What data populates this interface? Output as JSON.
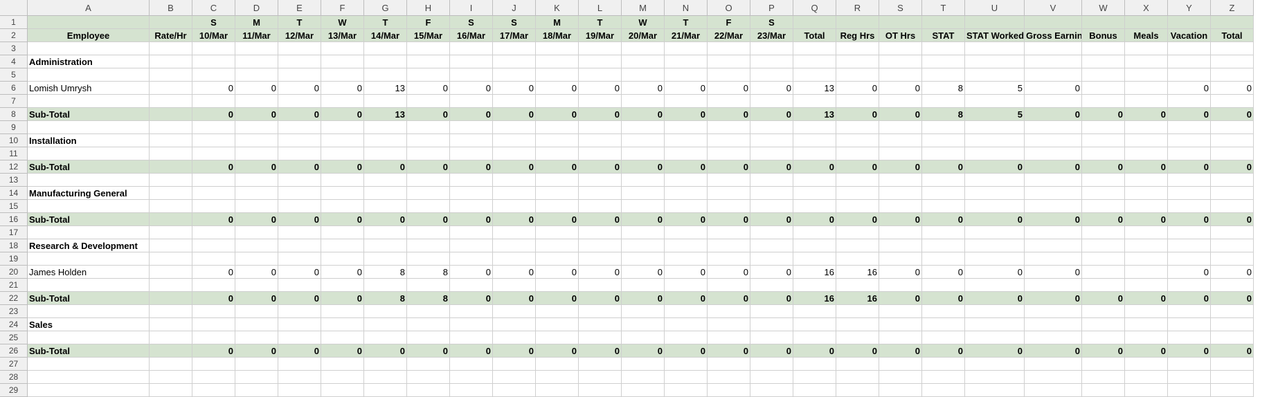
{
  "columns": [
    "A",
    "B",
    "C",
    "D",
    "E",
    "F",
    "G",
    "H",
    "I",
    "J",
    "K",
    "L",
    "M",
    "N",
    "O",
    "P",
    "Q",
    "R",
    "S",
    "T",
    "U",
    "V",
    "W",
    "X",
    "Y",
    "Z"
  ],
  "row_count": 29,
  "header_row1": [
    "",
    "",
    "S",
    "M",
    "T",
    "W",
    "T",
    "F",
    "S",
    "S",
    "M",
    "T",
    "W",
    "T",
    "F",
    "S",
    "",
    "",
    "",
    "",
    "",
    "",
    "",
    "",
    "",
    ""
  ],
  "header_row2": [
    "Employee",
    "Rate/Hr",
    "10/Mar",
    "11/Mar",
    "12/Mar",
    "13/Mar",
    "14/Mar",
    "15/Mar",
    "16/Mar",
    "17/Mar",
    "18/Mar",
    "19/Mar",
    "20/Mar",
    "21/Mar",
    "22/Mar",
    "23/Mar",
    "Total",
    "Reg Hrs",
    "OT Hrs",
    "STAT",
    "STAT Worked",
    "Gross Earnings",
    "Bonus",
    "Meals",
    "Vacation",
    "Total"
  ],
  "rows": {
    "4": {
      "kind": "section",
      "A": "Administration"
    },
    "6": {
      "kind": "employee",
      "A": "Lomish Umrysh",
      "values": [
        "",
        "0",
        "0",
        "0",
        "0",
        "13",
        "0",
        "0",
        "0",
        "0",
        "0",
        "0",
        "0",
        "0",
        "0",
        "13",
        "0",
        "0",
        "8",
        "5",
        "0",
        "",
        "",
        "0",
        "0"
      ]
    },
    "8": {
      "kind": "subtotal",
      "A": "Sub-Total",
      "values": [
        "",
        "0",
        "0",
        "0",
        "0",
        "13",
        "0",
        "0",
        "0",
        "0",
        "0",
        "0",
        "0",
        "0",
        "0",
        "13",
        "0",
        "0",
        "8",
        "5",
        "0",
        "0",
        "0",
        "0",
        "0"
      ]
    },
    "10": {
      "kind": "section",
      "A": "Installation"
    },
    "12": {
      "kind": "subtotal",
      "A": "Sub-Total",
      "values": [
        "",
        "0",
        "0",
        "0",
        "0",
        "0",
        "0",
        "0",
        "0",
        "0",
        "0",
        "0",
        "0",
        "0",
        "0",
        "0",
        "0",
        "0",
        "0",
        "0",
        "0",
        "0",
        "0",
        "0",
        "0"
      ]
    },
    "14": {
      "kind": "section",
      "A": "Manufacturing General"
    },
    "16": {
      "kind": "subtotal",
      "A": "Sub-Total",
      "values": [
        "",
        "0",
        "0",
        "0",
        "0",
        "0",
        "0",
        "0",
        "0",
        "0",
        "0",
        "0",
        "0",
        "0",
        "0",
        "0",
        "0",
        "0",
        "0",
        "0",
        "0",
        "0",
        "0",
        "0",
        "0"
      ]
    },
    "18": {
      "kind": "section",
      "A": "Research & Development"
    },
    "20": {
      "kind": "employee",
      "A": "James Holden",
      "values": [
        "",
        "0",
        "0",
        "0",
        "0",
        "8",
        "8",
        "0",
        "0",
        "0",
        "0",
        "0",
        "0",
        "0",
        "0",
        "16",
        "16",
        "0",
        "0",
        "0",
        "0",
        "",
        "",
        "0",
        "0"
      ]
    },
    "22": {
      "kind": "subtotal",
      "A": "Sub-Total",
      "values": [
        "",
        "0",
        "0",
        "0",
        "0",
        "8",
        "8",
        "0",
        "0",
        "0",
        "0",
        "0",
        "0",
        "0",
        "0",
        "16",
        "16",
        "0",
        "0",
        "0",
        "0",
        "0",
        "0",
        "0",
        "0"
      ]
    },
    "24": {
      "kind": "section",
      "A": "Sales"
    },
    "26": {
      "kind": "subtotal",
      "A": "Sub-Total",
      "values": [
        "",
        "0",
        "0",
        "0",
        "0",
        "0",
        "0",
        "0",
        "0",
        "0",
        "0",
        "0",
        "0",
        "0",
        "0",
        "0",
        "0",
        "0",
        "0",
        "0",
        "0",
        "0",
        "0",
        "0",
        "0"
      ]
    }
  },
  "colors": {
    "band": "#d5e3d0",
    "header_bg": "#f0f0f0",
    "gridline": "#cfcfcf"
  }
}
